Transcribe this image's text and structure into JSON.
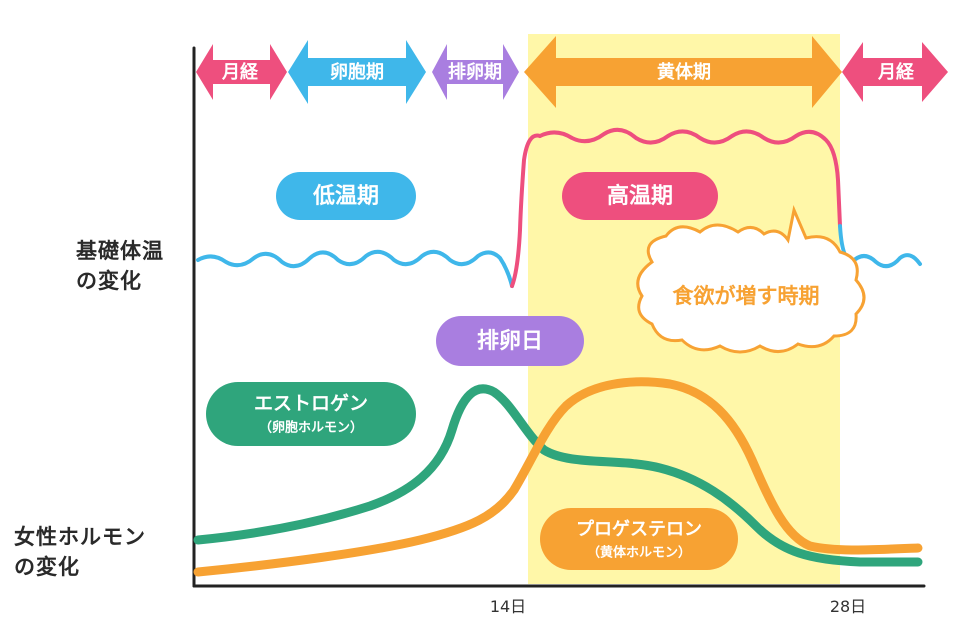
{
  "phases": [
    {
      "label": "月経",
      "color": "#ee4f7e"
    },
    {
      "label": "卵胞期",
      "color": "#3fb7ea"
    },
    {
      "label": "排卵期",
      "color": "#a97ee0"
    },
    {
      "label": "黄体期",
      "color": "#f7a233"
    },
    {
      "label": "月経",
      "color": "#ee4f7e"
    }
  ],
  "labels": {
    "bbt_line1": "基礎体温",
    "bbt_line2": "の変化",
    "hormone_line1": "女性ホルモン",
    "hormone_line2": "の変化",
    "low_temp": "低温期",
    "high_temp": "高温期",
    "ovulation_day": "排卵日",
    "appetite": "食欲が増す時期",
    "estrogen": "エストロゲン",
    "estrogen_sub": "（卵胞ホルモン）",
    "progesterone": "プロゲステロン",
    "progesterone_sub": "（黄体ホルモン）"
  },
  "axis": {
    "tick_14": "14日",
    "tick_28": "28日"
  },
  "colors": {
    "low_temp": "#3fb7ea",
    "high_temp": "#ee4f7e",
    "ovulation": "#a97ee0",
    "estrogen": "#2fa57c",
    "progesterone": "#f7a233",
    "luteal_bg": "#fff7a8",
    "appetite": "#f7a233"
  }
}
